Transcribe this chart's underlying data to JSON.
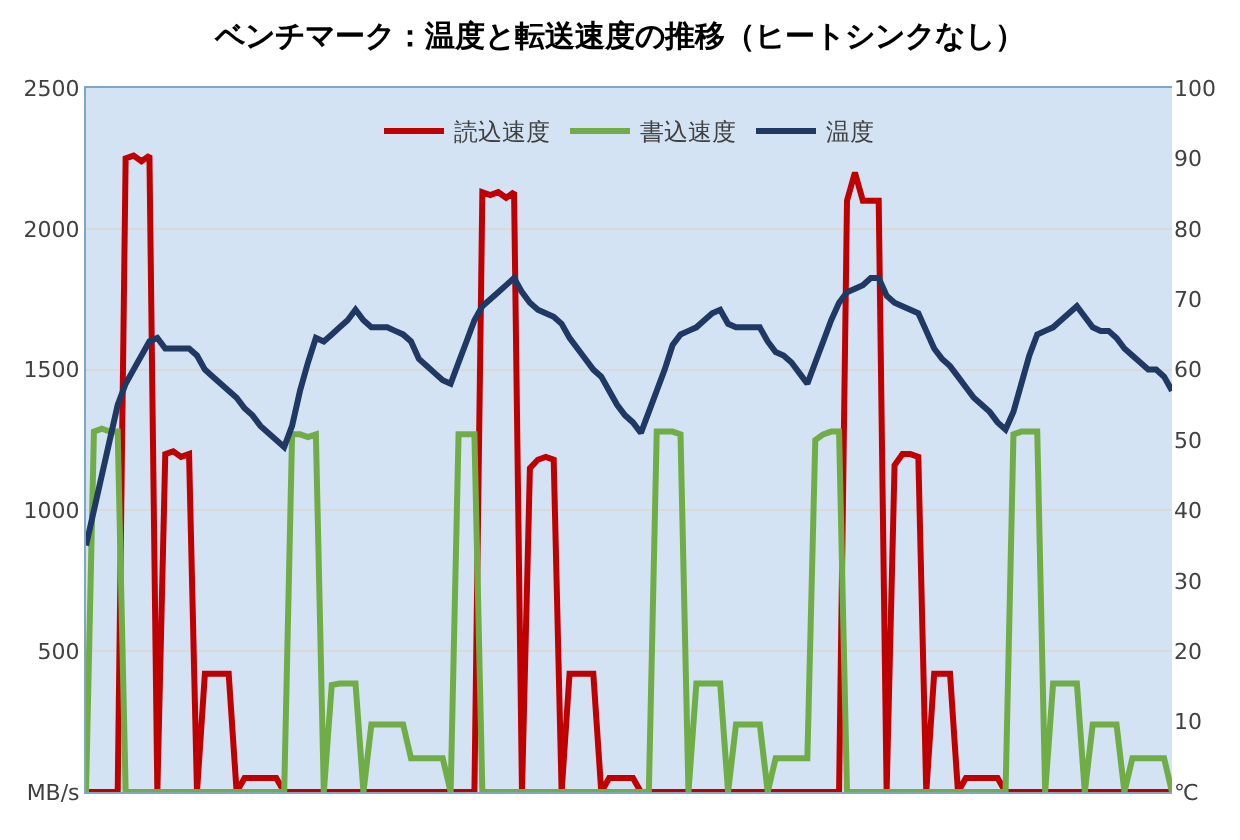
{
  "chart_data": {
    "type": "line",
    "title": "ベンチマーク：温度と転送速度の推移（ヒートシンクなし）",
    "categories": [
      null,
      null,
      null,
      null,
      null,
      null,
      null,
      null,
      null,
      null,
      null,
      null,
      null,
      null,
      null,
      null,
      null,
      null,
      null,
      null,
      null,
      null,
      null,
      null,
      null,
      null,
      null,
      null,
      null,
      null,
      null,
      null,
      null,
      null,
      null,
      null,
      null,
      null,
      null,
      null,
      null,
      null,
      null,
      null,
      null,
      null,
      null,
      null,
      null,
      null,
      null,
      null,
      null,
      null,
      null,
      null,
      null,
      null,
      null,
      null,
      null,
      null,
      null,
      null,
      null,
      null,
      null,
      null,
      null,
      null,
      null,
      null,
      null,
      null,
      null,
      null,
      null,
      null,
      null,
      null,
      null,
      null,
      null,
      null,
      null,
      null,
      null,
      null,
      null,
      null,
      null,
      null,
      null,
      null,
      null,
      null,
      null,
      null,
      null,
      null,
      null,
      null,
      null,
      null,
      null,
      null,
      null,
      null,
      null,
      null,
      null,
      null,
      null,
      null,
      null,
      null,
      null,
      null,
      null,
      null,
      null,
      null,
      null,
      null,
      null,
      null,
      null,
      null,
      null,
      null,
      null,
      null,
      null,
      null,
      null,
      null,
      null,
      null
    ],
    "series": [
      {
        "name": "読込速度",
        "color": "#c00000",
        "values": [
          0,
          0,
          0,
          0,
          0,
          2250,
          2260,
          2240,
          2260,
          0,
          1200,
          1210,
          1190,
          1200,
          0,
          420,
          420,
          420,
          420,
          0,
          50,
          50,
          50,
          50,
          50,
          0,
          0,
          0,
          0,
          0,
          0,
          0,
          0,
          0,
          0,
          0,
          0,
          0,
          0,
          0,
          0,
          0,
          0,
          0,
          0,
          0,
          0,
          0,
          0,
          0,
          2130,
          2120,
          2130,
          2110,
          2130,
          0,
          1150,
          1180,
          1190,
          1180,
          0,
          420,
          420,
          420,
          420,
          0,
          50,
          50,
          50,
          50,
          0,
          0,
          0,
          0,
          0,
          0,
          0,
          0,
          0,
          0,
          0,
          0,
          0,
          0,
          0,
          0,
          0,
          0,
          0,
          0,
          0,
          0,
          0,
          0,
          0,
          0,
          2100,
          2200,
          2100,
          2100,
          2100,
          0,
          1160,
          1200,
          1200,
          1190,
          0,
          420,
          420,
          420,
          0,
          50,
          50,
          50,
          50,
          50,
          0,
          0,
          0,
          0,
          0,
          0,
          0,
          0,
          0,
          0,
          0,
          0,
          0,
          0,
          0,
          0,
          0,
          0,
          0,
          0,
          0,
          0
        ]
      },
      {
        "name": "書込速度",
        "color": "#70ad47",
        "values": [
          0,
          1280,
          1290,
          1280,
          1280,
          0,
          0,
          0,
          0,
          0,
          0,
          0,
          0,
          0,
          0,
          0,
          0,
          0,
          0,
          0,
          0,
          0,
          0,
          0,
          0,
          0,
          1270,
          1270,
          1260,
          1270,
          0,
          380,
          385,
          385,
          385,
          0,
          240,
          240,
          240,
          240,
          240,
          120,
          120,
          120,
          120,
          120,
          0,
          1270,
          1270,
          1270,
          0,
          0,
          0,
          0,
          0,
          0,
          0,
          0,
          0,
          0,
          0,
          0,
          0,
          0,
          0,
          0,
          0,
          0,
          0,
          0,
          0,
          0,
          1280,
          1280,
          1280,
          1270,
          0,
          385,
          385,
          385,
          385,
          0,
          240,
          240,
          240,
          240,
          0,
          120,
          120,
          120,
          120,
          120,
          1250,
          1270,
          1280,
          1280,
          0,
          0,
          0,
          0,
          0,
          0,
          0,
          0,
          0,
          0,
          0,
          0,
          0,
          0,
          0,
          0,
          0,
          0,
          0,
          0,
          0,
          1270,
          1280,
          1280,
          1280,
          0,
          385,
          385,
          385,
          385,
          0,
          240,
          240,
          240,
          240,
          0,
          120,
          120,
          120,
          120,
          120,
          0
        ]
      },
      {
        "name": "温度",
        "color": "#1f3864",
        "axis": "y2",
        "values": [
          35,
          40,
          45,
          50,
          55,
          58,
          60,
          62,
          64,
          64.5,
          63,
          63,
          63,
          63,
          62,
          60,
          59,
          58,
          57,
          56,
          54.5,
          53.5,
          52,
          51,
          50,
          49,
          52,
          57,
          61,
          64.5,
          64,
          65,
          66,
          67,
          68.5,
          67,
          66,
          66,
          66,
          65.5,
          65,
          64,
          61.5,
          60.5,
          59.5,
          58.5,
          58,
          61,
          64,
          67,
          69,
          70,
          71,
          72,
          73,
          71,
          69.5,
          68.5,
          68,
          67.5,
          66.5,
          64.5,
          63,
          61.5,
          60,
          59,
          57,
          55,
          53.5,
          52.5,
          51,
          54,
          57,
          60,
          63.5,
          65,
          65.5,
          66,
          67,
          68,
          68.5,
          66.5,
          66,
          66,
          66,
          66,
          64,
          62.5,
          62,
          61,
          59.5,
          58,
          61,
          64,
          67,
          69.5,
          71,
          71.5,
          72,
          73,
          73,
          70.5,
          69.5,
          69,
          68.5,
          68,
          65.5,
          63,
          61.5,
          60.5,
          59,
          57.5,
          56,
          55,
          54,
          52.5,
          51.5,
          54,
          58,
          62,
          65,
          65.5,
          66,
          67,
          68,
          69,
          67.5,
          66,
          65.5,
          65.5,
          64.5,
          63,
          62,
          61,
          60,
          60,
          59,
          57
        ]
      }
    ],
    "ylim": [
      0,
      2500
    ],
    "yticks": [
      {
        "value": 0,
        "label": "MB/s"
      },
      500,
      1000,
      1500,
      2000,
      2500
    ],
    "y2lim": [
      0,
      100
    ],
    "y2ticks": [
      {
        "value": 0,
        "label": "℃"
      },
      10,
      20,
      30,
      40,
      50,
      60,
      70,
      80,
      90,
      100
    ],
    "grid": "y",
    "legend": "top",
    "tick_labels": "y",
    "marker": "none",
    "line_style": "solid"
  }
}
